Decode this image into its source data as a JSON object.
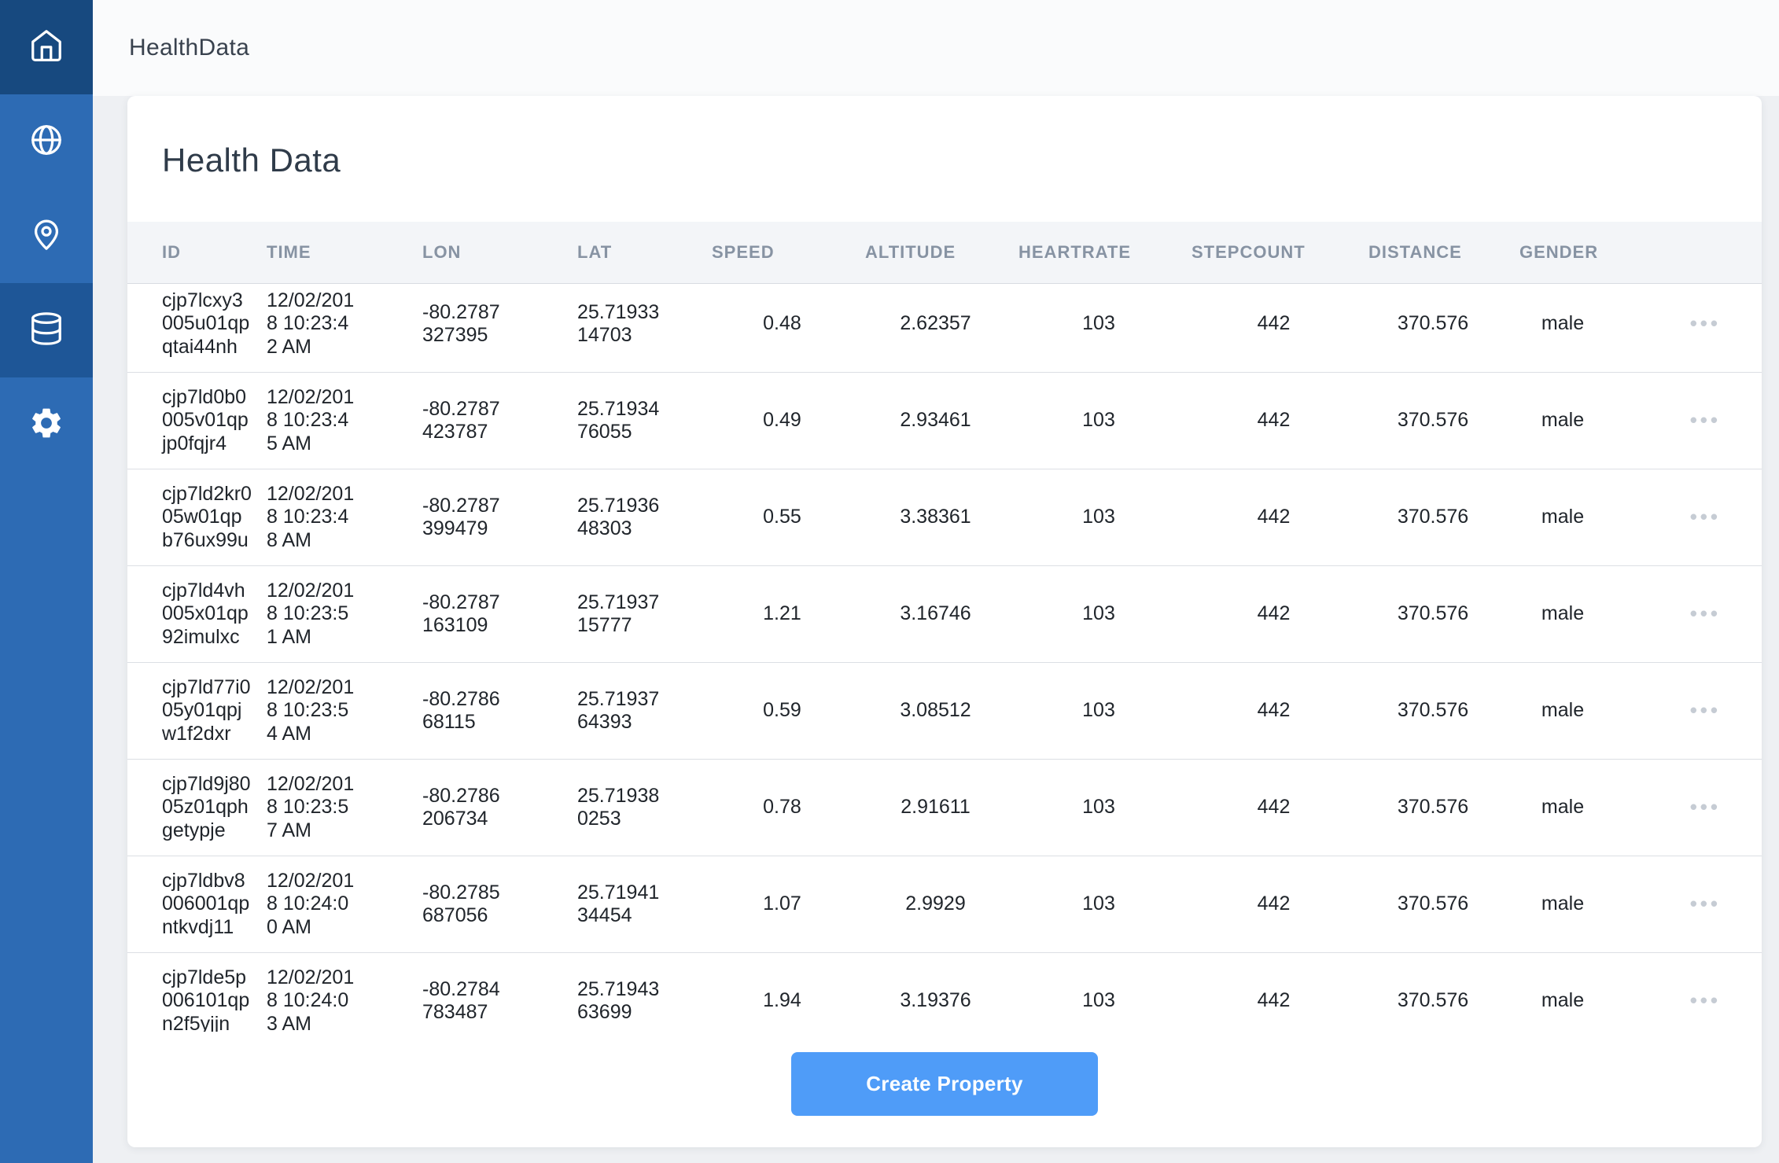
{
  "app": {
    "title": "HealthData"
  },
  "sidebar": {
    "items": [
      {
        "name": "home",
        "icon": "home-icon",
        "active": true
      },
      {
        "name": "globe",
        "icon": "globe-icon",
        "active": false
      },
      {
        "name": "location",
        "icon": "location-pin-icon",
        "active": false
      },
      {
        "name": "database",
        "icon": "database-icon",
        "active": true
      },
      {
        "name": "settings",
        "icon": "gear-icon",
        "active": false
      }
    ]
  },
  "page": {
    "title": "Health Data",
    "create_button_label": "Create Property"
  },
  "table": {
    "row_actions_icon": "ellipsis-icon",
    "row_actions_glyph": "•••",
    "columns": [
      {
        "key": "id",
        "label": "ID",
        "wrap": true
      },
      {
        "key": "time",
        "label": "TIME",
        "wrap": true
      },
      {
        "key": "lon",
        "label": "LON",
        "wrap": true
      },
      {
        "key": "lat",
        "label": "LAT",
        "wrap": true
      },
      {
        "key": "speed",
        "label": "SPEED",
        "center": true
      },
      {
        "key": "altitude",
        "label": "ALTITUDE",
        "center": true
      },
      {
        "key": "heartrate",
        "label": "HEARTRATE",
        "center": true
      },
      {
        "key": "stepcount",
        "label": "STEPCOUNT",
        "center": true
      },
      {
        "key": "distance",
        "label": "DISTANCE",
        "center": true
      },
      {
        "key": "gender",
        "label": "GENDER",
        "center": true
      }
    ],
    "rows": [
      {
        "id": "cjp7lcxy3005u01qpqtai44nh",
        "time": "12/02/2018 10:23:42 AM",
        "lon": "-80.2787327395",
        "lat": "25.7193314703",
        "speed": "0.48",
        "altitude": "2.62357",
        "heartrate": "103",
        "stepcount": "442",
        "distance": "370.576",
        "gender": "male"
      },
      {
        "id": "cjp7ld0b0005v01qpjp0fqjr4",
        "time": "12/02/2018 10:23:45 AM",
        "lon": "-80.2787423787",
        "lat": "25.7193476055",
        "speed": "0.49",
        "altitude": "2.93461",
        "heartrate": "103",
        "stepcount": "442",
        "distance": "370.576",
        "gender": "male"
      },
      {
        "id": "cjp7ld2kr005w01qpb76ux99u",
        "time": "12/02/2018 10:23:48 AM",
        "lon": "-80.2787399479",
        "lat": "25.7193648303",
        "speed": "0.55",
        "altitude": "3.38361",
        "heartrate": "103",
        "stepcount": "442",
        "distance": "370.576",
        "gender": "male"
      },
      {
        "id": "cjp7ld4vh005x01qp92imulxc",
        "time": "12/02/2018 10:23:51 AM",
        "lon": "-80.2787163109",
        "lat": "25.7193715777",
        "speed": "1.21",
        "altitude": "3.16746",
        "heartrate": "103",
        "stepcount": "442",
        "distance": "370.576",
        "gender": "male"
      },
      {
        "id": "cjp7ld77i005y01qpjw1f2dxr",
        "time": "12/02/2018 10:23:54 AM",
        "lon": "-80.278668115",
        "lat": "25.7193764393",
        "speed": "0.59",
        "altitude": "3.08512",
        "heartrate": "103",
        "stepcount": "442",
        "distance": "370.576",
        "gender": "male"
      },
      {
        "id": "cjp7ld9j8005z01qphgetypje",
        "time": "12/02/2018 10:23:57 AM",
        "lon": "-80.2786206734",
        "lat": "25.719380253",
        "speed": "0.78",
        "altitude": "2.91611",
        "heartrate": "103",
        "stepcount": "442",
        "distance": "370.576",
        "gender": "male"
      },
      {
        "id": "cjp7ldbv8006001qpntkvdj11",
        "time": "12/02/2018 10:24:00 AM",
        "lon": "-80.2785687056",
        "lat": "25.7194134454",
        "speed": "1.07",
        "altitude": "2.9929",
        "heartrate": "103",
        "stepcount": "442",
        "distance": "370.576",
        "gender": "male"
      },
      {
        "id": "cjp7lde5p006101qpn2f5yjjn",
        "time": "12/02/2018 10:24:03 AM",
        "lon": "-80.2784783487",
        "lat": "25.7194363699",
        "speed": "1.94",
        "altitude": "3.19376",
        "heartrate": "103",
        "stepcount": "442",
        "distance": "370.576",
        "gender": "male"
      }
    ]
  },
  "colors": {
    "sidebar": "#2d6bb4",
    "sidebar_active": "#1e5697",
    "sidebar_active_top": "#17497f",
    "accent_button": "#4f9cf8",
    "table_header_bg": "#f3f5f8",
    "table_header_text": "#8793a3"
  }
}
